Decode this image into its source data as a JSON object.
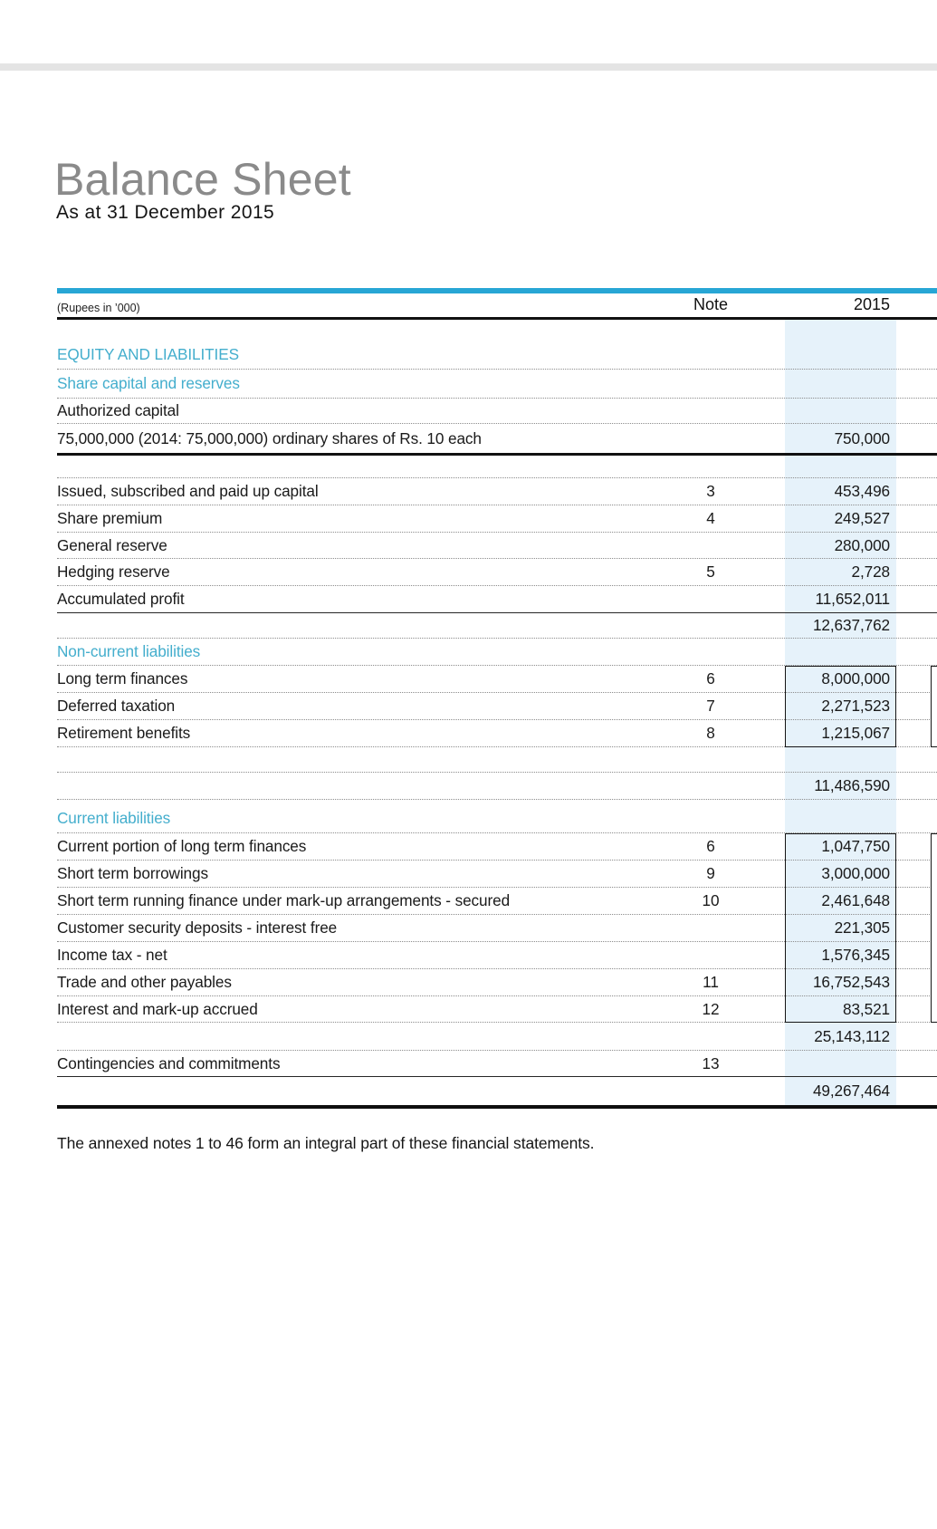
{
  "page": {
    "title": "Balance Sheet",
    "subtitle": "As at 31 December 2015",
    "footnote": "The annexed notes 1 to 46 form an integral part of these financial statements."
  },
  "table": {
    "unit_label": "(Rupees in ’000)",
    "note_header": "Note",
    "year_header": "2015",
    "colors": {
      "accent_bar": "#27a6d5",
      "section_heading": "#44aecd",
      "year_column_bg": "#e6f2fa"
    },
    "rows": [
      {
        "type": "section",
        "label": "EQUITY AND LIABILITIES",
        "note": "",
        "value": ""
      },
      {
        "type": "section",
        "label": "Share capital and reserves",
        "note": "",
        "value": ""
      },
      {
        "type": "item",
        "label": "Authorized capital",
        "note": "",
        "value": ""
      },
      {
        "type": "item",
        "label": "75,000,000 (2014: 75,000,000) ordinary shares of Rs. 10 each",
        "note": "",
        "value": "750,000"
      },
      {
        "type": "spacer",
        "label": "",
        "note": "",
        "value": ""
      },
      {
        "type": "item",
        "label": "Issued, subscribed and paid up capital",
        "note": "3",
        "value": "453,496"
      },
      {
        "type": "item",
        "label": "Share premium",
        "note": "4",
        "value": "249,527"
      },
      {
        "type": "item",
        "label": "General reserve",
        "note": "",
        "value": "280,000"
      },
      {
        "type": "item",
        "label": "Hedging reserve",
        "note": "5",
        "value": "2,728"
      },
      {
        "type": "item",
        "label": "Accumulated profit",
        "note": "",
        "value": "11,652,011"
      },
      {
        "type": "subtotal",
        "label": "",
        "note": "",
        "value": "12,637,762"
      },
      {
        "type": "section",
        "label": "Non-current liabilities",
        "note": "",
        "value": ""
      },
      {
        "type": "item",
        "label": "Long term finances",
        "note": "6",
        "value": "8,000,000"
      },
      {
        "type": "item",
        "label": "Deferred taxation",
        "note": "7",
        "value": "2,271,523"
      },
      {
        "type": "item",
        "label": "Retirement benefits",
        "note": "8",
        "value": "1,215,067"
      },
      {
        "type": "spacer",
        "label": "",
        "note": "",
        "value": ""
      },
      {
        "type": "subtotal",
        "label": "",
        "note": "",
        "value": "11,486,590"
      },
      {
        "type": "section",
        "label": "Current liabilities",
        "note": "",
        "value": ""
      },
      {
        "type": "item",
        "label": "Current portion of long term finances",
        "note": "6",
        "value": "1,047,750"
      },
      {
        "type": "item",
        "label": "Short term borrowings",
        "note": "9",
        "value": "3,000,000"
      },
      {
        "type": "item",
        "label": "Short term running finance under mark-up arrangements - secured",
        "note": "10",
        "value": "2,461,648"
      },
      {
        "type": "item",
        "label": "Customer security deposits - interest free",
        "note": "",
        "value": "221,305"
      },
      {
        "type": "item",
        "label": "Income tax - net",
        "note": "",
        "value": "1,576,345"
      },
      {
        "type": "item",
        "label": "Trade and other payables",
        "note": "11",
        "value": "16,752,543"
      },
      {
        "type": "item",
        "label": "Interest and mark-up accrued",
        "note": "12",
        "value": "83,521"
      },
      {
        "type": "subtotal",
        "label": "",
        "note": "",
        "value": "25,143,112"
      },
      {
        "type": "item",
        "label": "Contingencies and commitments",
        "note": "13",
        "value": ""
      },
      {
        "type": "total",
        "label": "",
        "note": "",
        "value": "49,267,464"
      }
    ]
  }
}
